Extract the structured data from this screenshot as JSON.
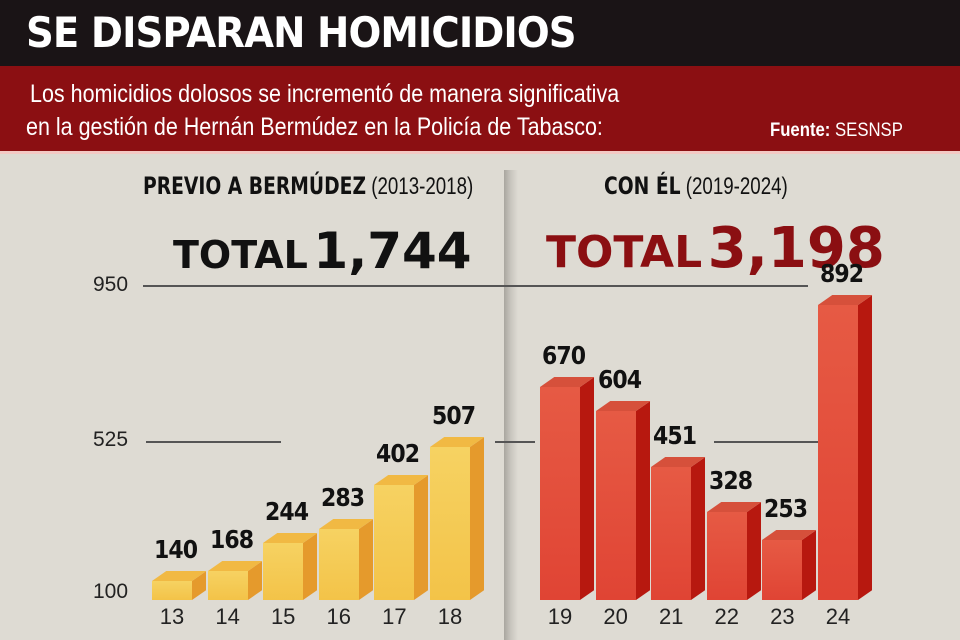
{
  "header": {
    "title": "SE DISPARAN HOMICIDIOS",
    "subtitle_line1": "Los homicidios dolosos se incrementó de manera significativa",
    "subtitle_line2": "en la gestión de Hernán Bermúdez en la Policía de Tabasco:",
    "source_label": "Fuente:",
    "source_value": "SESNSP"
  },
  "panels": {
    "before": {
      "title_bold": "PREVIO A BERMÚDEZ",
      "title_range": "(2013-2018)",
      "total_label": "TOTAL",
      "total_value": "1,744"
    },
    "during": {
      "title_bold": "CON ÉL",
      "title_range": "(2019-2024)",
      "total_label": "TOTAL",
      "total_value": "3,198"
    }
  },
  "colors": {
    "header_bg": "#1a1416",
    "subheader_bg": "#8b0f12",
    "before_bar": "#f3c348",
    "during_bar": "#e04434",
    "during_total": "#8b0f12",
    "background": "#dedbd3"
  },
  "chart_data": {
    "type": "bar",
    "title": "SE DISPARAN HOMICIDIOS",
    "subtitle": "Los homicidios dolosos se incrementó de manera significativa en la gestión de Hernán Bermúdez en la Policía de Tabasco:",
    "source": "Fuente: SESNSP",
    "xlabel": "",
    "ylabel": "",
    "yticks": [
      "100",
      "525",
      "950"
    ],
    "ylim": [
      100,
      950
    ],
    "grid": true,
    "categories": [
      "13",
      "14",
      "15",
      "16",
      "17",
      "18",
      "19",
      "20",
      "21",
      "22",
      "23",
      "24"
    ],
    "series": [
      {
        "name": "PREVIO A BERMÚDEZ (2013-2018)",
        "total": 1744,
        "categories": [
          "13",
          "14",
          "15",
          "16",
          "17",
          "18"
        ],
        "values": [
          140,
          168,
          244,
          283,
          402,
          507
        ]
      },
      {
        "name": "CON ÉL (2019-2024)",
        "total": 3198,
        "categories": [
          "19",
          "20",
          "21",
          "22",
          "23",
          "24"
        ],
        "values": [
          670,
          604,
          451,
          328,
          253,
          892
        ]
      }
    ]
  }
}
